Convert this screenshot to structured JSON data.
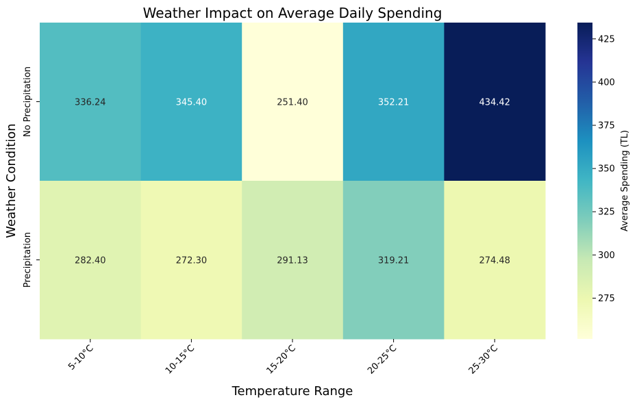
{
  "chart_data": {
    "type": "heatmap",
    "title": "Weather Impact on Average Daily Spending",
    "xlabel": "Temperature Range",
    "ylabel": "Weather Condition",
    "x_categories": [
      "5-10°C",
      "10-15°C",
      "15-20°C",
      "20-25°C",
      "25-30°C"
    ],
    "y_categories": [
      "No Precipitation",
      "Precipitation"
    ],
    "values": [
      [
        336.24,
        345.4,
        251.4,
        352.21,
        434.42
      ],
      [
        282.4,
        272.3,
        291.13,
        319.21,
        274.48
      ]
    ],
    "value_labels": [
      [
        "336.24",
        "345.40",
        "251.40",
        "352.21",
        "434.42"
      ],
      [
        "282.40",
        "272.30",
        "291.13",
        "319.21",
        "274.48"
      ]
    ],
    "colormap": "YlGnBu",
    "vmin": 251.4,
    "vmax": 434.42,
    "colorbar": {
      "label": "Average Spending (TL)",
      "ticks": [
        275,
        300,
        325,
        350,
        375,
        400,
        425
      ],
      "tick_labels": [
        "275",
        "300",
        "325",
        "350",
        "375",
        "400",
        "425"
      ]
    },
    "grid": false
  }
}
